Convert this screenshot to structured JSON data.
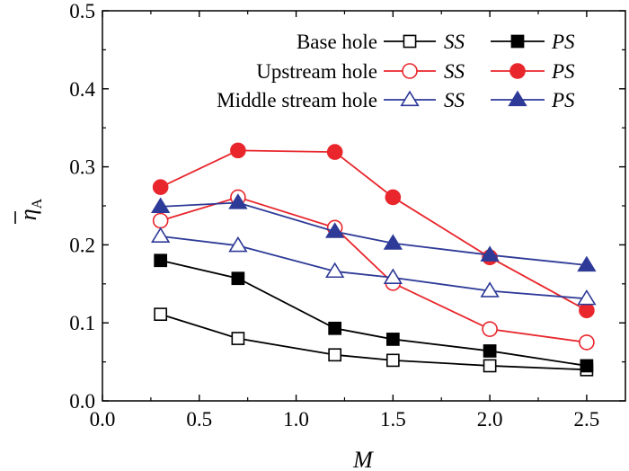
{
  "chart_data": {
    "type": "line",
    "xlabel": "M",
    "ylabel": "η",
    "ylabel_subscript": "A",
    "xlim": [
      0.0,
      2.7
    ],
    "ylim": [
      0.0,
      0.5
    ],
    "x_ticks": [
      "0.0",
      "0.5",
      "1.0",
      "1.5",
      "2.0",
      "2.5"
    ],
    "y_ticks": [
      "0.0",
      "0.1",
      "0.2",
      "0.3",
      "0.4",
      "0.5"
    ],
    "legend_placement": "top-right",
    "x": [
      0.3,
      0.7,
      1.2,
      1.5,
      2.0,
      2.5
    ],
    "groups": [
      {
        "label": "Base hole",
        "color": "#000000",
        "marker": "square"
      },
      {
        "label": "Upstream hole",
        "color": "#e8262c",
        "marker": "circle"
      },
      {
        "label": "Middle stream hole",
        "color": "#2e3a97",
        "marker": "triangle"
      }
    ],
    "sides": [
      "SS",
      "PS"
    ],
    "series": [
      {
        "group": 0,
        "side": "SS",
        "filled": false,
        "values": [
          0.111,
          0.08,
          0.059,
          0.052,
          0.045,
          0.04
        ]
      },
      {
        "group": 0,
        "side": "PS",
        "filled": true,
        "values": [
          0.18,
          0.157,
          0.093,
          0.079,
          0.064,
          0.045
        ]
      },
      {
        "group": 1,
        "side": "SS",
        "filled": false,
        "values": [
          0.231,
          0.261,
          0.222,
          0.151,
          0.092,
          0.075
        ]
      },
      {
        "group": 1,
        "side": "PS",
        "filled": true,
        "values": [
          0.274,
          0.321,
          0.319,
          0.261,
          0.184,
          0.116
        ]
      },
      {
        "group": 2,
        "side": "SS",
        "filled": false,
        "values": [
          0.211,
          0.199,
          0.166,
          0.158,
          0.141,
          0.131
        ]
      },
      {
        "group": 2,
        "side": "PS",
        "filled": true,
        "values": [
          0.249,
          0.254,
          0.217,
          0.202,
          0.187,
          0.174
        ]
      }
    ]
  }
}
